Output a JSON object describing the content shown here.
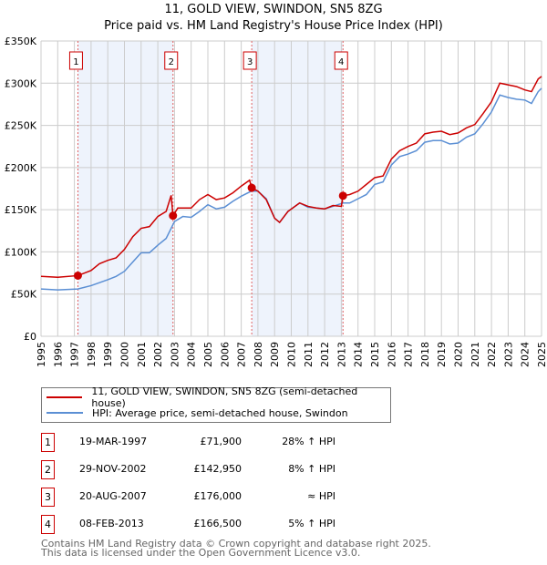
{
  "chart_data": {
    "type": "line",
    "title": "11, GOLD VIEW, SWINDON, SN5 8ZG",
    "subtitle": "Price paid vs. HM Land Registry's House Price Index (HPI)",
    "xlim": [
      1995,
      2025
    ],
    "ylim": [
      0,
      350000
    ],
    "x_ticks": [
      "1995",
      "1996",
      "1997",
      "1998",
      "1999",
      "2000",
      "2001",
      "2002",
      "2003",
      "2004",
      "2005",
      "2006",
      "2007",
      "2008",
      "2009",
      "2010",
      "2011",
      "2012",
      "2013",
      "2014",
      "2015",
      "2016",
      "2017",
      "2018",
      "2019",
      "2020",
      "2021",
      "2022",
      "2023",
      "2024",
      "2025"
    ],
    "y_ticks": [
      {
        "v": 0,
        "label": "£0"
      },
      {
        "v": 50000,
        "label": "£50K"
      },
      {
        "v": 100000,
        "label": "£100K"
      },
      {
        "v": 150000,
        "label": "£150K"
      },
      {
        "v": 200000,
        "label": "£200K"
      },
      {
        "v": 250000,
        "label": "£250K"
      },
      {
        "v": 300000,
        "label": "£300K"
      },
      {
        "v": 350000,
        "label": "£350K"
      }
    ],
    "grid": true,
    "shaded_ranges": [
      [
        1997.21,
        2002.91
      ],
      [
        2007.63,
        2013.1
      ]
    ],
    "series": [
      {
        "name": "11, GOLD VIEW, SWINDON, SN5 8ZG (semi-detached house)",
        "color": "#cc0000",
        "x": [
          1995,
          1996,
          1997.21,
          1998,
          1998.5,
          1999,
          1999.5,
          2000,
          2000.5,
          2001,
          2001.5,
          2002,
          2002.5,
          2002.8,
          2002.91,
          2003.2,
          2004,
          2004.5,
          2005,
          2005.5,
          2006,
          2006.5,
          2007,
          2007.5,
          2007.63,
          2008,
          2008.5,
          2009,
          2009.3,
          2009.8,
          2010.5,
          2011,
          2011.5,
          2012,
          2012.5,
          2013,
          2013.1,
          2013.5,
          2014,
          2014.5,
          2015,
          2015.5,
          2016,
          2016.5,
          2017,
          2017.5,
          2018,
          2018.5,
          2019,
          2019.5,
          2020,
          2020.5,
          2021,
          2021.5,
          2022,
          2022.5,
          2023,
          2023.5,
          2024,
          2024.4,
          2024.8,
          2025
        ],
        "y": [
          71000,
          70000,
          71900,
          78000,
          86000,
          90000,
          93000,
          103000,
          118000,
          128000,
          130000,
          142000,
          148000,
          167000,
          142950,
          152000,
          152000,
          162000,
          168000,
          162000,
          164000,
          170000,
          178000,
          185000,
          176000,
          172000,
          162000,
          140000,
          135000,
          148000,
          158000,
          154000,
          152000,
          151000,
          155000,
          154000,
          166500,
          168000,
          172000,
          180000,
          188000,
          190000,
          210000,
          220000,
          225000,
          229000,
          240000,
          242000,
          243000,
          239000,
          241000,
          247000,
          251000,
          264000,
          278000,
          300000,
          298000,
          296000,
          292000,
          290000,
          305000,
          308000
        ]
      },
      {
        "name": "HPI: Average price, semi-detached house, Swindon",
        "color": "#5b8fd4",
        "x": [
          1995,
          1996,
          1997.21,
          1998,
          1999,
          1999.5,
          2000,
          2000.5,
          2001,
          2001.5,
          2002,
          2002.5,
          2003,
          2003.5,
          2004,
          2004.5,
          2005,
          2005.5,
          2006,
          2006.5,
          2007,
          2007.6,
          2008,
          2008.5,
          2009,
          2009.3,
          2009.8,
          2010.5,
          2011,
          2011.5,
          2012,
          2012.5,
          2013.1,
          2013.5,
          2014,
          2014.5,
          2015,
          2015.5,
          2016,
          2016.5,
          2017,
          2017.5,
          2018,
          2018.5,
          2019,
          2019.5,
          2020,
          2020.5,
          2021,
          2021.5,
          2022,
          2022.5,
          2023,
          2023.5,
          2024,
          2024.4,
          2024.8,
          2025
        ],
        "y": [
          56000,
          55000,
          56000,
          60000,
          67000,
          71000,
          77000,
          88000,
          99000,
          99000,
          108000,
          116000,
          136000,
          142000,
          141000,
          148000,
          156000,
          151000,
          153000,
          160000,
          166000,
          172000,
          172000,
          163000,
          140000,
          135000,
          148000,
          158000,
          153000,
          152000,
          151000,
          154000,
          158000,
          158000,
          163000,
          168000,
          180000,
          183000,
          203000,
          213000,
          216000,
          220000,
          230000,
          232000,
          232000,
          228000,
          229000,
          236000,
          240000,
          252000,
          266000,
          286000,
          283000,
          281000,
          280000,
          276000,
          290000,
          294000
        ]
      }
    ],
    "sales": [
      {
        "n": "1",
        "x": 1997.21,
        "y": 71900,
        "date": "19-MAR-1997",
        "price": "£71,900",
        "hpi": "28% ↑ HPI"
      },
      {
        "n": "2",
        "x": 2002.91,
        "y": 142950,
        "date": "29-NOV-2002",
        "price": "£142,950",
        "hpi": "8% ↑ HPI"
      },
      {
        "n": "3",
        "x": 2007.63,
        "y": 176000,
        "date": "20-AUG-2007",
        "price": "£176,000",
        "hpi": "≈ HPI"
      },
      {
        "n": "4",
        "x": 2013.1,
        "y": 166500,
        "date": "08-FEB-2013",
        "price": "£166,500",
        "hpi": "5% ↑ HPI"
      }
    ],
    "legend_position": "below"
  },
  "footer": {
    "line1": "Contains HM Land Registry data © Crown copyright and database right 2025.",
    "line2": "This data is licensed under the Open Government Licence v3.0."
  }
}
